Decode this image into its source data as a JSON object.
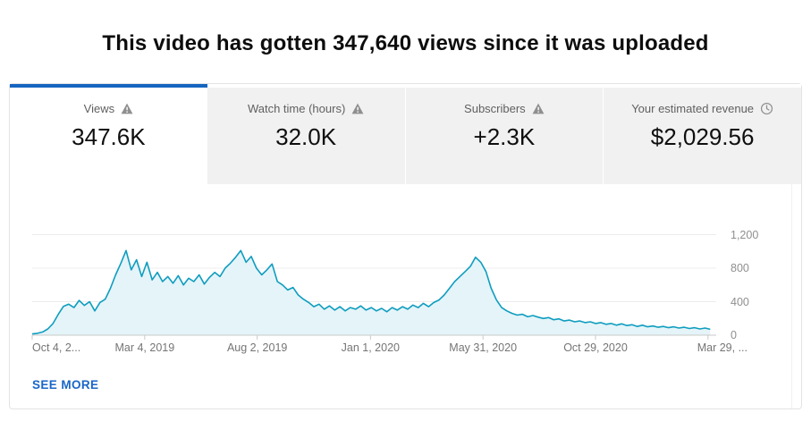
{
  "page_title": "This video has gotten 347,640 views since it was uploaded",
  "card": {
    "tabs": [
      {
        "id": "views",
        "label": "Views",
        "icon": "warning",
        "value": "347.6K",
        "active": true
      },
      {
        "id": "watch-time",
        "label": "Watch time (hours)",
        "icon": "warning",
        "value": "32.0K",
        "active": false
      },
      {
        "id": "subscribers",
        "label": "Subscribers",
        "icon": "warning",
        "value": "+2.3K",
        "active": false
      },
      {
        "id": "revenue",
        "label": "Your estimated revenue",
        "icon": "clock",
        "value": "$2,029.56",
        "active": false
      }
    ],
    "see_more_label": "SEE MORE"
  },
  "colors": {
    "accent_blue": "#1565c0",
    "link_blue": "#1a66c9",
    "line": "#0f9dbe",
    "fill": "#e4f4f9",
    "grid": "#ececec",
    "axis": "#c9c9c9",
    "tab_bg": "#f1f1f1",
    "label_gray": "#606060",
    "value_dark": "#0f0f0f",
    "tick_gray": "#757575"
  },
  "chart_data": {
    "type": "area",
    "metric": "Views",
    "grid": "horizontal",
    "legend": "none",
    "x_tick_labels": [
      "Oct 4, 2...",
      "Mar 4, 2019",
      "Aug 2, 2019",
      "Jan 1, 2020",
      "May 31, 2020",
      "Oct 29, 2020",
      "Mar 29, ..."
    ],
    "x_tick_days": [
      0,
      151,
      302,
      454,
      605,
      756,
      907
    ],
    "x_range_days": [
      0,
      918
    ],
    "sample_interval_days": 7,
    "values": [
      15,
      22,
      38,
      75,
      140,
      250,
      345,
      370,
      330,
      415,
      355,
      400,
      290,
      390,
      430,
      560,
      720,
      860,
      1010,
      780,
      900,
      700,
      870,
      660,
      750,
      640,
      700,
      620,
      710,
      600,
      680,
      640,
      720,
      610,
      690,
      750,
      700,
      800,
      860,
      930,
      1010,
      870,
      940,
      800,
      720,
      780,
      850,
      640,
      600,
      540,
      570,
      480,
      430,
      390,
      340,
      370,
      310,
      350,
      300,
      340,
      290,
      330,
      310,
      350,
      300,
      330,
      290,
      320,
      280,
      330,
      300,
      340,
      310,
      360,
      330,
      380,
      340,
      390,
      420,
      480,
      560,
      640,
      700,
      760,
      820,
      930,
      870,
      760,
      560,
      420,
      330,
      290,
      260,
      240,
      250,
      220,
      235,
      215,
      200,
      210,
      185,
      195,
      170,
      180,
      160,
      170,
      150,
      160,
      140,
      150,
      130,
      140,
      120,
      135,
      115,
      125,
      105,
      120,
      100,
      110,
      95,
      105,
      90,
      100,
      85,
      95,
      80,
      90,
      75,
      85,
      70
    ],
    "y_ticks": [
      0,
      400,
      800,
      1200
    ],
    "y_tick_labels": [
      "0",
      "400",
      "800",
      "1,200"
    ],
    "ylim": [
      0,
      1280
    ]
  }
}
